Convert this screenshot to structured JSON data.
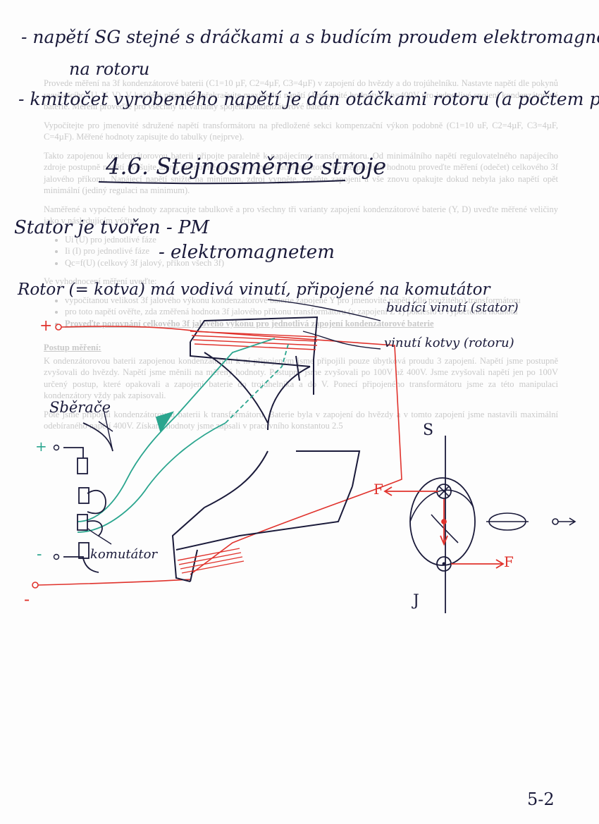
{
  "handwritten_notes": {
    "line1": "- napětí SG stejné s dráčkami a s budícím proudem elektromagnetu",
    "line2": "na rotoru",
    "line3": "- kmitočet vyrobeného napětí je dán otáčkami rotoru (a počtem p)",
    "section_title": "4.6. Stejnosměrné stroje",
    "stator_line1": "Stator je tvořen - PM",
    "stator_line2": "- elektromagnetem",
    "rotor_line": "Rotor (= kotva) má vodivá vinutí, připojené na komutátor",
    "winding_stator": "budící vinutí (stator)",
    "winding_rotor": "vinutí kotvy (rotoru)",
    "label_brushes": "Sběrače",
    "label_commutator": "komutátor",
    "polarity_plus_top": "+",
    "polarity_plus_mid": "+",
    "polarity_minus_mid": "-",
    "polarity_minus_bottom": "-",
    "pole_south": "S",
    "pole_north": "J",
    "force_label_left": "F",
    "force_label_right": "F",
    "page_number": "5-2"
  },
  "background_text": {
    "p1": "Provede měření na 3f kondenzátorové baterii (C1=10 µF, C2=4µF, C3=4µF) v zapojení do hvězdy a do trojúhelníku. Nastavte napětí dle pokynů vyučujícího (U, V, V). V každém případě nepřekračujte maximální napětí (Jmenovité hodnoty) Un=400V pro jednotlivé spojení kondenzátorové baterie. Měření proveďte pro všechny tři varianty spojení kondenzátorové baterie.",
    "p2": "Vypočítejte pro jmenovité sdružené napětí transformátoru na předložené sekci kompenzační výkon podobně (C1=10 uF, C2=4µF, C3=4µF, C=4µF). Měřené hodnoty zapisujte do tabulky (nejprve).",
    "p3": "Takto zapojenou kondenzátorovou baterii připojte paralelně k napájecímu transformátoru. Od minimálního napětí regulovatelného napájecího zdroje postupně napětí zvyšujte až na jmenovité napájecí napětí transformátoru. Pouze pro tuto hodnotu proveďte měření (odečet) celkového 3f jalového příkonu. Napájecí napětí snižte na minimum, zdroj vypněte, změňte zapojení a vše znovu opakujte dokud nebyla jako napětí opět minimální (jediný regulaci na minimum).",
    "p4": "Naměřené a vypočtené hodnoty zapracujte tabulkově a pro všechny tři varianty zapojení kondenzátorové baterie (Y, D) uveďte měřené veličiny jako v následujícím výčtu:",
    "list1": [
      "Ui (U) pro jednotlivé fáze",
      "Ii (I) pro jednotlivé fáze",
      "Qc=f(U) (celkový 3f jalový, příkon všech 3f)"
    ],
    "p5": "Ve vyhodnocení měření uveďte:",
    "list2": [
      "vypočítanou velikost 3f jalového výkonu kondenzátorové baterie zapojené Y pro jmenovité napětí (dle použitého) transformátoru",
      "pro toto napětí ověřte, zda změřená hodnota 3f jalového příkonu transformátoru (v zapojení Z 1) pokleslo o vypočtenou hodnotu"
    ],
    "list2_underlined": "Proveďte porovnání celkového 3f jalového výkonu pro jednotlivá zapojení kondenzátorové baterie",
    "h_postup": "Postup měření:",
    "p6": "K ondenzátorovou baterii zapojenou kondenzátorem k ní připojeným jsme připojili pouze úbytková proudu 3 zapojení. Napětí jsme postupně zvyšovali do hvězdy. Napětí jsme měnili na měřený hodnoty. Postupně jsme zvyšovali po 100V až 400V. Jsme zvyšovali napětí jen po 100V určený postup, které opakovali a zapojení baterie do trojúhelníka a do V. Ponecí připojeného transformátoru jsme za této manipulaci kondenzátory vždy pak zapisovali.",
    "p7": "Poté jsme připojili kondenzátorovou baterii k transformátoru. Baterie byla v zapojení do hvězdy a v tomto zapojení jsme nastavili maximální odebíraného napětí 400V. Získané hodnoty jsme zapsali v pracovního konstantou 2.5"
  },
  "colors": {
    "ink_dark": "#1a1a3a",
    "ink_red": "#e0322c",
    "ink_green": "#2aa58e",
    "faint_text": "#c9c9c9"
  }
}
